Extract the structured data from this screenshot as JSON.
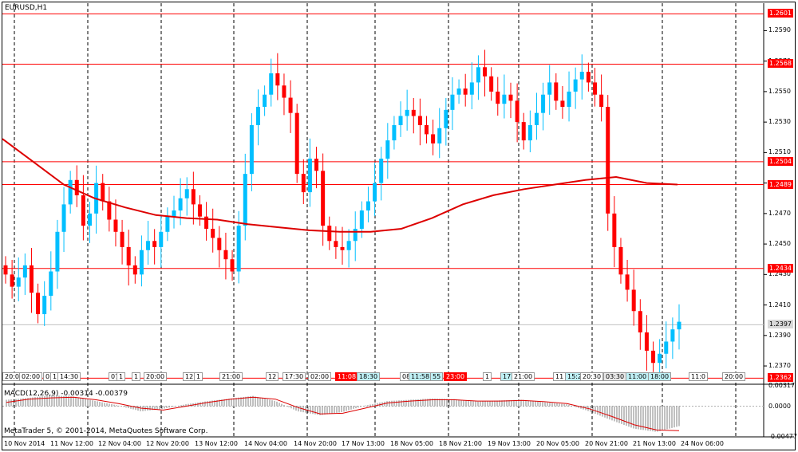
{
  "chart_title": "EURUSD,H1",
  "indicator_label": "MACD(12,26,9) -0.00314 -0.00379",
  "copyright": "MetaTrader 5, © 2001-2014, MetaQuotes Software Corp.",
  "colors": {
    "bull": "#00bfff",
    "bear": "#ff0000",
    "ma": "#dd0000",
    "level": "#ff0000",
    "grid": "#000000",
    "current": "#c0c0c0",
    "histogram": "#808080"
  },
  "horizontal_levels": [
    {
      "label": "1.2601",
      "price": 1.2601
    },
    {
      "label": "1.2568",
      "price": 1.2568
    },
    {
      "label": "1.2504",
      "price": 1.2504
    },
    {
      "label": "1.2489",
      "price": 1.2489
    },
    {
      "label": "1.2434",
      "price": 1.2434
    },
    {
      "label": "1.2362",
      "price": 1.2362
    }
  ],
  "current_price": {
    "label": "1.2397",
    "price": 1.2397
  },
  "price_ticks": [
    "1.2590",
    "1.2570",
    "1.2550",
    "1.2530",
    "1.2510",
    "1.2490",
    "1.2470",
    "1.2450",
    "1.2430",
    "1.2410",
    "1.2390",
    "1.2370"
  ],
  "macd_ticks": [
    "0.00317",
    "0.0000",
    "-0.00477"
  ],
  "time_labels": [
    "10 Nov 2014",
    "11 Nov 12:00",
    "12 Nov 04:00",
    "12 Nov 20:00",
    "13 Nov 12:00",
    "14 Nov 04:00",
    "14 Nov 20:00",
    "17 Nov 13:00",
    "18 Nov 05:00",
    "18 Nov 21:00",
    "19 Nov 13:00",
    "20 Nov 05:00",
    "20 Nov 21:00",
    "21 Nov 13:00",
    "24 Nov 06:00"
  ],
  "time_tags": [
    {
      "text": "20:0",
      "style": "plain"
    },
    {
      "text": "02:00",
      "style": "plain"
    },
    {
      "text": "0",
      "style": "plain"
    },
    {
      "text": "11",
      "style": "plain"
    },
    {
      "text": "14:30",
      "style": "plain"
    },
    {
      "text": "07",
      "style": "plain"
    },
    {
      "text": "1",
      "style": "plain"
    },
    {
      "text": "1",
      "style": "plain"
    },
    {
      "text": "20:00",
      "style": "plain"
    },
    {
      "text": "12",
      "style": "plain"
    },
    {
      "text": "1",
      "style": "plain"
    },
    {
      "text": "21:00",
      "style": "plain"
    },
    {
      "text": "12",
      "style": "plain"
    },
    {
      "text": "17:30",
      "style": "plain"
    },
    {
      "text": "02:00",
      "style": "plain"
    },
    {
      "text": "11:08",
      "style": "red"
    },
    {
      "text": "18:30",
      "style": "cyan"
    },
    {
      "text": "08",
      "style": "plain"
    },
    {
      "text": "11:58",
      "style": "cyan"
    },
    {
      "text": "55",
      "style": "cyan"
    },
    {
      "text": "23:00",
      "style": "red"
    },
    {
      "text": "1",
      "style": "plain"
    },
    {
      "text": "17:",
      "style": "cyan"
    },
    {
      "text": "21:00",
      "style": "plain"
    },
    {
      "text": "11",
      "style": "plain"
    },
    {
      "text": "15:2",
      "style": "cyan"
    },
    {
      "text": "20:30",
      "style": "plain"
    },
    {
      "text": "03:30",
      "style": "dark"
    },
    {
      "text": "11:00",
      "style": "cyan"
    },
    {
      "text": "18:00",
      "style": "cyan"
    },
    {
      "text": "11:0",
      "style": "plain"
    },
    {
      "text": "20:00",
      "style": "plain"
    }
  ],
  "chart_data": {
    "type": "candlestick",
    "symbol": "EURUSD",
    "timeframe": "H1",
    "ylim": [
      1.2358,
      1.2608
    ],
    "x_labels": [
      "10 Nov 2014",
      "11 Nov 12:00",
      "12 Nov 04:00",
      "12 Nov 20:00",
      "13 Nov 12:00",
      "14 Nov 04:00",
      "14 Nov 20:00",
      "17 Nov 13:00",
      "18 Nov 05:00",
      "18 Nov 21:00",
      "19 Nov 13:00",
      "20 Nov 05:00",
      "20 Nov 21:00",
      "21 Nov 13:00",
      "24 Nov 06:00"
    ],
    "close_path": [
      1.243,
      1.2422,
      1.2428,
      1.2436,
      1.2418,
      1.2404,
      1.2416,
      1.2432,
      1.2458,
      1.2476,
      1.2492,
      1.2482,
      1.2462,
      1.247,
      1.249,
      1.2478,
      1.2466,
      1.2458,
      1.2448,
      1.2436,
      1.243,
      1.2446,
      1.2452,
      1.2448,
      1.2458,
      1.2468,
      1.2472,
      1.248,
      1.2486,
      1.2476,
      1.2468,
      1.246,
      1.2454,
      1.2446,
      1.244,
      1.2432,
      1.2462,
      1.2496,
      1.2528,
      1.254,
      1.2548,
      1.2562,
      1.2554,
      1.2546,
      1.2536,
      1.2496,
      1.2484,
      1.2506,
      1.2498,
      1.2462,
      1.2452,
      1.2448,
      1.2446,
      1.2452,
      1.246,
      1.2472,
      1.2478,
      1.249,
      1.2506,
      1.2518,
      1.2528,
      1.2534,
      1.2538,
      1.2534,
      1.2528,
      1.2522,
      1.2516,
      1.2526,
      1.2538,
      1.2548,
      1.2552,
      1.2548,
      1.2556,
      1.2566,
      1.256,
      1.255,
      1.2542,
      1.2548,
      1.2544,
      1.253,
      1.2518,
      1.2528,
      1.2536,
      1.2548,
      1.2556,
      1.2544,
      1.254,
      1.255,
      1.2558,
      1.2563,
      1.2556,
      1.2548,
      1.254,
      1.247,
      1.2448,
      1.243,
      1.242,
      1.2406,
      1.2392,
      1.238,
      1.2372,
      1.2378,
      1.2386,
      1.2394,
      1.2399
    ],
    "moving_average": [
      1.2519,
      1.2504,
      1.2489,
      1.248,
      1.2474,
      1.2469,
      1.2467,
      1.2466,
      1.2463,
      1.2461,
      1.2459,
      1.2458,
      1.2458,
      1.246,
      1.2467,
      1.2476,
      1.2482,
      1.2486,
      1.2489,
      1.2492,
      1.2494,
      1.249,
      1.2489
    ],
    "macd_histogram_values": [
      0.001,
      0.0013,
      0.0017,
      0.0015,
      0.0008,
      0.0001,
      -0.0008,
      -0.0004,
      0.0003,
      0.0008,
      0.0012,
      0.0016,
      0.0008,
      -0.0008,
      -0.0014,
      -0.0009,
      0.0001,
      0.0008,
      0.001,
      0.0012,
      0.0011,
      0.0007,
      0.0009,
      0.001,
      0.0006,
      0.0003,
      -0.0008,
      -0.0022,
      -0.0035,
      -0.004,
      -0.0031
    ],
    "macd_signal_values": [
      0.0006,
      0.0011,
      0.0013,
      0.0014,
      0.001,
      0.0004,
      -0.0003,
      -0.0006,
      0.0,
      0.0006,
      0.0011,
      0.0014,
      0.0011,
      -0.0002,
      -0.0012,
      -0.0011,
      -0.0003,
      0.0005,
      0.0008,
      0.001,
      0.001,
      0.0008,
      0.0008,
      0.0009,
      0.0007,
      0.0004,
      -0.0004,
      -0.0016,
      -0.0029,
      -0.0037,
      -0.0038
    ],
    "macd_ylim": [
      -0.00477,
      0.00317
    ]
  }
}
